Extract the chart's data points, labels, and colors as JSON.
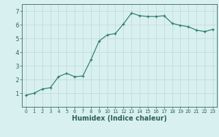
{
  "x": [
    0,
    1,
    2,
    3,
    4,
    5,
    6,
    7,
    8,
    9,
    10,
    11,
    12,
    13,
    14,
    15,
    16,
    17,
    18,
    19,
    20,
    21,
    22,
    23
  ],
  "y": [
    0.85,
    1.0,
    1.3,
    1.4,
    2.2,
    2.45,
    2.2,
    2.25,
    3.45,
    4.8,
    5.25,
    5.35,
    6.05,
    6.85,
    6.65,
    6.6,
    6.6,
    6.65,
    6.1,
    5.95,
    5.85,
    5.6,
    5.5,
    5.65
  ],
  "xlabel": "Humidex (Indice chaleur)",
  "ylim": [
    0.0,
    7.5
  ],
  "xlim": [
    -0.5,
    23.5
  ],
  "line_color": "#2e7d6e",
  "bg_color": "#d9f0f0",
  "grid_color": "#c0dada",
  "tick_color": "#2e5e5e",
  "xlabel_fontsize": 7,
  "tick_fontsize_x": 5,
  "tick_fontsize_y": 6,
  "yticks": [
    1,
    2,
    3,
    4,
    5,
    6,
    7
  ],
  "xticks": [
    0,
    1,
    2,
    3,
    4,
    5,
    6,
    7,
    8,
    9,
    10,
    11,
    12,
    13,
    14,
    15,
    16,
    17,
    18,
    19,
    20,
    21,
    22,
    23
  ]
}
